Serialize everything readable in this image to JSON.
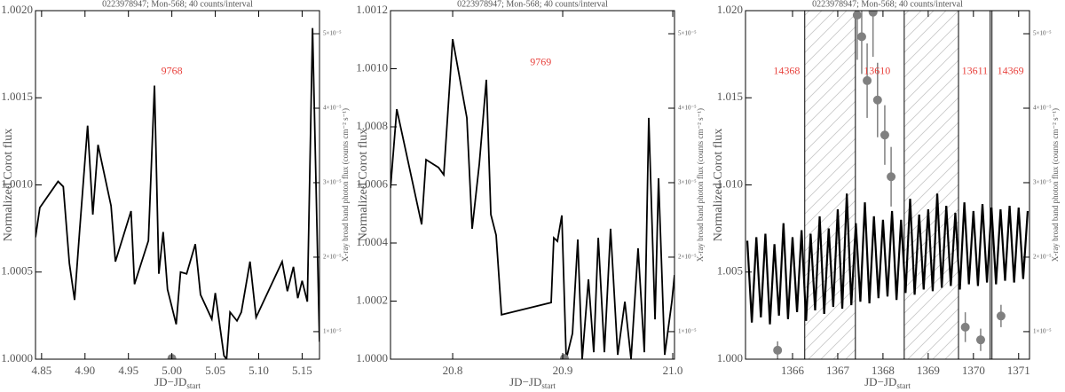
{
  "chart_data": [
    {
      "type": "line",
      "title": "0223978947; Mon-568; 40 counts/interval",
      "xlabel": "JD−JD",
      "xlabel_subscript": "start",
      "ylabel": "Normalized Corot flux",
      "y2label": "X-ray broad band photon flux (counts cm⁻² s⁻¹)",
      "xlim": [
        4.843,
        5.17
      ],
      "xticks": [
        4.85,
        {
          "value": 4.9,
          "label": "4.90"
        },
        4.95,
        {
          "value": 5.0,
          "label": "5.00"
        },
        5.05,
        {
          "value": 5.1,
          "label": "5.10"
        },
        5.15
      ],
      "ylim": [
        1.0,
        1.002
      ],
      "yticks": [
        {
          "value": 1.0,
          "label": "1.0000"
        },
        {
          "value": 1.0005,
          "label": "1.0005"
        },
        {
          "value": 1.001,
          "label": "1.0010"
        },
        {
          "value": 1.0015,
          "label": "1.0015"
        },
        {
          "value": 1.002,
          "label": "1.0020"
        }
      ],
      "y2lim": [
        6.3e-06,
        5.31e-05
      ],
      "y2ticks": [
        {
          "value": 1e-05,
          "label": "1×10⁻⁵"
        },
        {
          "value": 2e-05,
          "label": "2×10⁻⁵"
        },
        {
          "value": 3e-05,
          "label": "3×10⁻⁵"
        },
        {
          "value": 4e-05,
          "label": "4×10⁻⁵"
        },
        {
          "value": 5e-05,
          "label": "5×10⁻⁵"
        }
      ],
      "series": [
        {
          "color": "#000000",
          "x": [
            4.843,
            4.848,
            4.869,
            4.875,
            4.882,
            4.888,
            4.894,
            4.903,
            4.909,
            4.915,
            4.93,
            4.935,
            4.953,
            4.957,
            4.973,
            4.98,
            4.985,
            4.99,
            4.995,
            5.005,
            5.01,
            5.017,
            5.027,
            5.033,
            5.046,
            5.05,
            5.06,
            5.063,
            5.067,
            5.075,
            5.08,
            5.09,
            5.097,
            5.127,
            5.133,
            5.14,
            5.145,
            5.15,
            5.156,
            5.162,
            5.17
          ],
          "values": [
            1.0007,
            1.00087,
            1.00102,
            1.00099,
            1.00055,
            1.00034,
            1.00075,
            1.00134,
            1.00083,
            1.00123,
            1.00088,
            1.00056,
            1.00085,
            1.00043,
            1.00068,
            1.00157,
            1.00049,
            1.00073,
            1.0004,
            1.0002,
            1.0005,
            1.00049,
            1.00066,
            1.00037,
            1.00023,
            1.00038,
            1.00002,
            1.0,
            1.00027,
            1.00022,
            1.00027,
            1.00056,
            1.00024,
            1.00056,
            1.00039,
            1.00053,
            1.00035,
            1.00045,
            1.00033,
            1.0019,
            1.0001
          ]
        },
        {
          "color": "#808080",
          "axis": "y2",
          "x": [
            5.0
          ],
          "values": [
            6.4e-06
          ],
          "errors": [
            3e-07
          ]
        }
      ],
      "annotations": [
        {
          "text": "9768",
          "x": 5.0,
          "y": 1.00165,
          "color": "#e8413c"
        }
      ]
    },
    {
      "type": "line",
      "title": "0223978947; Mon-568; 40 counts/interval",
      "xlabel": "JD−JD",
      "xlabel_subscript": "start",
      "ylabel": "Normalized Corot flux",
      "y2label": "X-ray broad band photon flux (counts cm⁻² s⁻¹)",
      "xlim": [
        20.7435,
        21.0016
      ],
      "xticks": [
        20.8,
        20.9,
        {
          "value": 21.0,
          "label": "21.0"
        }
      ],
      "ylim": [
        1.0,
        1.0012
      ],
      "yticks": [
        {
          "value": 1.0,
          "label": "1.0000"
        },
        {
          "value": 1.0002,
          "label": "1.0002"
        },
        {
          "value": 1.0004,
          "label": "1.0004"
        },
        {
          "value": 1.0006,
          "label": "1.0006"
        },
        {
          "value": 1.0008,
          "label": "1.0008"
        },
        {
          "value": 1.001,
          "label": "1.0010"
        },
        {
          "value": 1.0012,
          "label": "1.0012"
        }
      ],
      "y2lim": [
        6.3e-06,
        5.31e-05
      ],
      "y2ticks": [
        {
          "value": 1e-05,
          "label": "1×10⁻⁵"
        },
        {
          "value": 2e-05,
          "label": "2×10⁻⁵"
        },
        {
          "value": 3e-05,
          "label": "3×10⁻⁵"
        },
        {
          "value": 4e-05,
          "label": "4×10⁻⁵"
        },
        {
          "value": 5e-05,
          "label": "5×10⁻⁵"
        }
      ],
      "series": [
        {
          "color": "#000000",
          "x": [
            20.7435,
            20.7492,
            20.7718,
            20.7758,
            20.7871,
            20.7919,
            20.8,
            20.8129,
            20.8177,
            20.8242,
            20.8306,
            20.8347,
            20.8395,
            20.8444,
            20.8895,
            20.8919,
            20.8952,
            20.8992,
            20.9032,
            20.9089,
            20.9137,
            20.9177,
            20.9234,
            20.9282,
            20.9323,
            20.9379,
            20.9435,
            20.95,
            20.9565,
            20.9621,
            20.9685,
            20.9742,
            20.9782,
            20.9839,
            20.9871,
            20.9927,
            20.9992,
            21.0016
          ],
          "values": [
            1.000589,
            1.000861,
            1.000464,
            1.000687,
            1.00066,
            1.000635,
            1.001102,
            1.000831,
            1.000449,
            1.000672,
            1.000962,
            1.000498,
            1.000427,
            1.000153,
            1.000195,
            1.000418,
            1.000406,
            1.000495,
            1.0,
            1.000089,
            1.000412,
            1.0,
            1.000275,
            1.000024,
            1.000418,
            1.000024,
            1.000449,
            1.000015,
            1.000198,
            1.0,
            1.000382,
            1.000024,
            1.000831,
            1.000137,
            1.000623,
            1.000015,
            1.000198,
            1.00029
          ]
        },
        {
          "color": "#808080",
          "axis": "y2",
          "x": [
            20.9016
          ],
          "values": [
            6.4e-06
          ],
          "errors": [
            3e-07
          ]
        }
      ],
      "annotations": [
        {
          "text": "9769",
          "x": 20.88,
          "y": 1.00102,
          "color": "#e8413c"
        }
      ]
    },
    {
      "type": "line",
      "title": "0223978947; Mon-568; 40 counts/interval",
      "xlabel": "JD−JD",
      "xlabel_subscript": "start",
      "ylabel": "Normalized Corot flux",
      "y2label": "X-ray broad band photon flux (counts cm⁻² s⁻¹)",
      "xlim": [
        1364.96,
        1371.24
      ],
      "xticks": [
        1366,
        1367,
        1368,
        1369,
        1370,
        1371
      ],
      "ylim": [
        1.0,
        1.02
      ],
      "yticks": [
        {
          "value": 1.0,
          "label": "1.000"
        },
        {
          "value": 1.005,
          "label": "1.005"
        },
        {
          "value": 1.01,
          "label": "1.010"
        },
        {
          "value": 1.015,
          "label": "1.015"
        },
        {
          "value": 1.02,
          "label": "1.020"
        }
      ],
      "y2lim": [
        6.3e-06,
        5.31e-05
      ],
      "y2ticks": [
        {
          "value": 1e-05,
          "label": "1×10⁻⁵"
        },
        {
          "value": 2e-05,
          "label": "2×10⁻⁵"
        },
        {
          "value": 3e-05,
          "label": "3×10⁻⁵"
        },
        {
          "value": 4e-05,
          "label": "4×10⁻⁵"
        },
        {
          "value": 5e-05,
          "label": "5×10⁻⁵"
        }
      ],
      "shaded": [
        [
          1366.27,
          1367.39
        ],
        [
          1368.47,
          1369.67
        ]
      ],
      "vlines": [
        1366.27,
        1367.39,
        1368.47,
        1369.67,
        1370.37,
        1370.41
      ],
      "series": [
        {
          "color": "#000000",
          "x": [
            1365.0,
            1365.1,
            1365.2,
            1365.3,
            1365.4,
            1365.5,
            1365.6,
            1365.7,
            1365.8,
            1365.9,
            1366.0,
            1366.1,
            1366.2,
            1366.3,
            1366.4,
            1366.5,
            1366.6,
            1366.7,
            1366.8,
            1366.9,
            1367.0,
            1367.1,
            1367.2,
            1367.3,
            1367.4,
            1367.5,
            1367.6,
            1367.7,
            1367.8,
            1367.9,
            1368.0,
            1368.1,
            1368.2,
            1368.3,
            1368.4,
            1368.5,
            1368.6,
            1368.7,
            1368.8,
            1368.9,
            1369.0,
            1369.1,
            1369.2,
            1369.3,
            1369.4,
            1369.5,
            1369.6,
            1369.7,
            1369.8,
            1369.9,
            1370.0,
            1370.1,
            1370.2,
            1370.3,
            1370.4,
            1370.5,
            1370.6,
            1370.7,
            1370.8,
            1370.9,
            1371.0,
            1371.1,
            1371.2
          ],
          "values": [
            1.0068,
            1.0021,
            1.007,
            1.0024,
            1.0072,
            1.002,
            1.0066,
            1.0025,
            1.0078,
            1.0023,
            1.007,
            1.0027,
            1.0074,
            1.0022,
            1.0072,
            1.0028,
            1.0082,
            1.0026,
            1.0075,
            1.003,
            1.0086,
            1.0029,
            1.0095,
            1.0031,
            1.0078,
            1.0033,
            1.009,
            1.0032,
            1.0082,
            1.0035,
            1.008,
            1.0036,
            1.0085,
            1.0034,
            1.008,
            1.0038,
            1.0092,
            1.0037,
            1.0083,
            1.004,
            1.0086,
            1.0039,
            1.0095,
            1.0041,
            1.0088,
            1.0042,
            1.0084,
            1.004,
            1.009,
            1.0043,
            1.0085,
            1.0042,
            1.0089,
            1.0044,
            1.0087,
            1.0043,
            1.0086,
            1.0045,
            1.0088,
            1.0044,
            1.0087,
            1.0046,
            1.0085
          ]
        },
        {
          "color": "#808080",
          "axis": "y2",
          "x": [
            1365.67,
            1367.43,
            1367.53,
            1367.65,
            1367.78,
            1367.88,
            1368.04,
            1368.18,
            1369.82,
            1370.16,
            1370.61
          ],
          "values": [
            7.5e-06,
            5.25e-05,
            4.96e-05,
            4.37e-05,
            5.29e-05,
            4.11e-05,
            3.64e-05,
            3.08e-05,
            1.06e-05,
            8.9e-06,
            1.21e-05
          ],
          "errors": [
            1.2e-06,
            6e-06,
            5e-06,
            5e-06,
            6e-06,
            5e-06,
            4e-06,
            4e-06,
            2e-06,
            1.5e-06,
            1.5e-06
          ]
        }
      ],
      "annotations": [
        {
          "text": "14368",
          "x": 1365.87,
          "y": 1.0165,
          "color": "#e8413c"
        },
        {
          "text": "13610",
          "x": 1367.87,
          "y": 1.0165,
          "color": "#e8413c"
        },
        {
          "text": "13611",
          "x": 1370.03,
          "y": 1.0165,
          "color": "#e8413c"
        },
        {
          "text": "14369",
          "x": 1370.82,
          "y": 1.0165,
          "color": "#e8413c"
        }
      ]
    }
  ]
}
